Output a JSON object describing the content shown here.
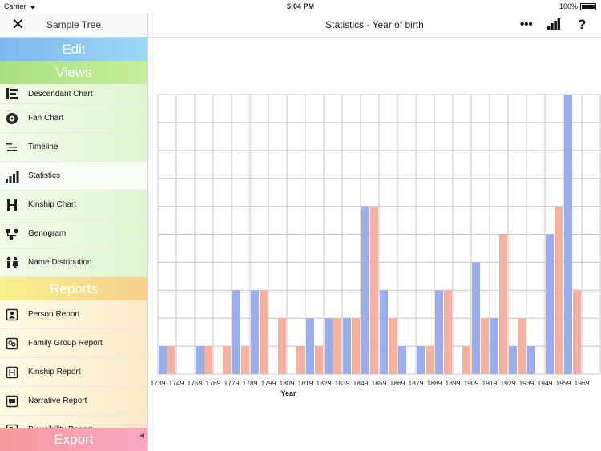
{
  "status_bar": {
    "carrier": "Carrier",
    "time": "5:04 PM",
    "battery": "100%"
  },
  "sidebar": {
    "tree_name": "Sample Tree",
    "close_icon": "close-icon",
    "edit_header": "Edit",
    "views_header": "Views",
    "views": [
      {
        "label": "Descendant Chart",
        "icon": "descendant-chart-icon"
      },
      {
        "label": "Fan Chart",
        "icon": "fan-chart-icon"
      },
      {
        "label": "Timeline",
        "icon": "timeline-icon"
      },
      {
        "label": "Statistics",
        "icon": "statistics-icon",
        "selected": true
      },
      {
        "label": "Kinship Chart",
        "icon": "kinship-chart-icon"
      },
      {
        "label": "Genogram",
        "icon": "genogram-icon"
      },
      {
        "label": "Name Distribution",
        "icon": "name-distribution-icon"
      }
    ],
    "reports_header": "Reports",
    "reports": [
      {
        "label": "Person Report",
        "icon": "person-report-icon"
      },
      {
        "label": "Family Group Report",
        "icon": "family-group-report-icon"
      },
      {
        "label": "Kinship Report",
        "icon": "kinship-report-icon"
      },
      {
        "label": "Narrative Report",
        "icon": "narrative-report-icon"
      },
      {
        "label": "Plausibility Report",
        "icon": "plausibility-report-icon"
      }
    ],
    "export_header": "Export"
  },
  "header": {
    "title": "Statistics - Year of birth",
    "buttons": [
      "more-icon",
      "chart-icon",
      "help-icon"
    ]
  },
  "chart_data": {
    "type": "bar",
    "xlabel": "Year",
    "categories": [
      "1739",
      "1749",
      "1759",
      "1769",
      "1779",
      "1789",
      "1799",
      "1809",
      "1819",
      "1829",
      "1839",
      "1849",
      "1859",
      "1869",
      "1879",
      "1889",
      "1899",
      "1909",
      "1919",
      "1929",
      "1939",
      "1949",
      "1959",
      "1969"
    ],
    "series": [
      {
        "color": "#9aaeed",
        "values": [
          1,
          0,
          1,
          0,
          3,
          3,
          0,
          0,
          2,
          2,
          2,
          6,
          3,
          1,
          1,
          3,
          0,
          4,
          2,
          1,
          1,
          5,
          10,
          0
        ]
      },
      {
        "color": "#f4b1a0",
        "values": [
          1,
          0,
          1,
          1,
          1,
          3,
          2,
          1,
          1,
          2,
          2,
          6,
          2,
          0,
          1,
          3,
          1,
          2,
          5,
          2,
          0,
          6,
          3,
          0
        ]
      }
    ],
    "ylim": [
      0,
      10
    ],
    "grid": true
  }
}
